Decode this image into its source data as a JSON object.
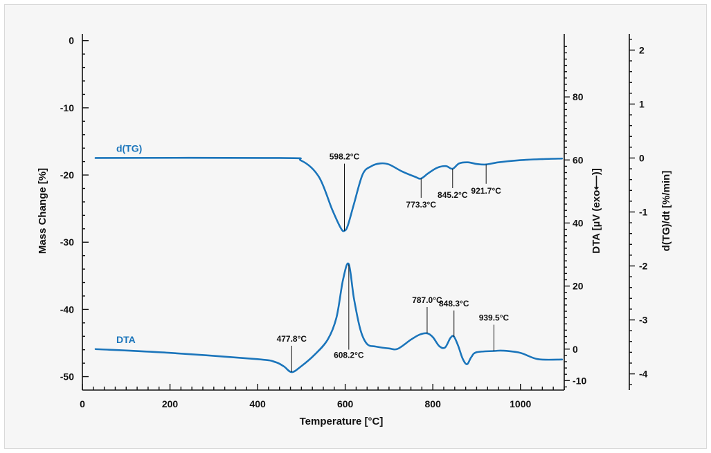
{
  "chart_data": {
    "type": "line",
    "xlabel": "Temperature [°C]",
    "ylabel_left": "Mass Change [%]",
    "ylabel_right1": "DTA [µV (exo⟵)]",
    "ylabel_right2": "d(TG)/dt [%/min]",
    "xlim": [
      0,
      1100
    ],
    "ylim_left": [
      -52,
      1
    ],
    "ylim_right1": [
      -13,
      100
    ],
    "ylim_right2": [
      -4.3,
      2.3
    ],
    "x_ticks": [
      0,
      200,
      400,
      600,
      800,
      1000
    ],
    "y_ticks_left": [
      0,
      -10,
      -20,
      -30,
      -40,
      -50
    ],
    "y_ticks_right1": [
      80,
      60,
      40,
      20,
      0,
      -10
    ],
    "y_ticks_right2": [
      2,
      1,
      0,
      -1,
      -2,
      -3,
      -4
    ],
    "line_color": "#1b75bb",
    "series": [
      {
        "name": "d(TG)",
        "axis": "right2",
        "x": [
          30,
          450,
          500,
          540,
          570,
          590,
          598,
          606,
          620,
          640,
          660,
          680,
          700,
          730,
          760,
          773,
          790,
          810,
          830,
          845,
          860,
          880,
          900,
          921,
          950,
          1000,
          1050,
          1095
        ],
        "y": [
          0.0,
          0.0,
          -0.05,
          -0.35,
          -0.95,
          -1.3,
          -1.35,
          -1.25,
          -0.85,
          -0.3,
          -0.15,
          -0.1,
          -0.12,
          -0.25,
          -0.35,
          -0.38,
          -0.28,
          -0.18,
          -0.15,
          -0.2,
          -0.1,
          -0.08,
          -0.11,
          -0.12,
          -0.08,
          -0.04,
          -0.02,
          -0.01
        ]
      },
      {
        "name": "DTA",
        "axis": "right1",
        "x": [
          30,
          200,
          400,
          440,
          460,
          478,
          500,
          530,
          560,
          580,
          595,
          608,
          620,
          635,
          650,
          670,
          700,
          720,
          750,
          770,
          787,
          800,
          815,
          828,
          840,
          848,
          858,
          868,
          878,
          888,
          900,
          940,
          960,
          1000,
          1040,
          1095
        ],
        "y": [
          0,
          -1.2,
          -3.2,
          -4.1,
          -5.5,
          -7.3,
          -5.4,
          -1.8,
          3.0,
          10,
          22,
          27,
          16,
          6,
          1.6,
          0.8,
          0.2,
          0.1,
          3.0,
          4.6,
          5.0,
          3.8,
          0.9,
          0.5,
          3.5,
          4.0,
          1.0,
          -3.0,
          -4.8,
          -2.5,
          -1.0,
          -0.6,
          -0.5,
          -1.2,
          -3.2,
          -3.3
        ]
      }
    ],
    "annotations": [
      {
        "series": "d(TG)",
        "x": 598.2,
        "label": "598.2°C",
        "placement": "above"
      },
      {
        "series": "d(TG)",
        "x": 773.3,
        "label": "773.3°C",
        "placement": "below"
      },
      {
        "series": "d(TG)",
        "x": 845.2,
        "label": "845.2°C",
        "placement": "below"
      },
      {
        "series": "d(TG)",
        "x": 921.7,
        "label": "921.7°C",
        "placement": "below"
      },
      {
        "series": "DTA",
        "x": 477.8,
        "label": "477.8°C",
        "placement": "above"
      },
      {
        "series": "DTA",
        "x": 608.2,
        "label": "608.2°C",
        "placement": "below"
      },
      {
        "series": "DTA",
        "x": 787.0,
        "label": "787.0°C",
        "placement": "above"
      },
      {
        "series": "DTA",
        "x": 848.3,
        "label": "848.3°C",
        "placement": "above"
      },
      {
        "series": "DTA",
        "x": 939.5,
        "label": "939.5°C",
        "placement": "above"
      }
    ]
  }
}
